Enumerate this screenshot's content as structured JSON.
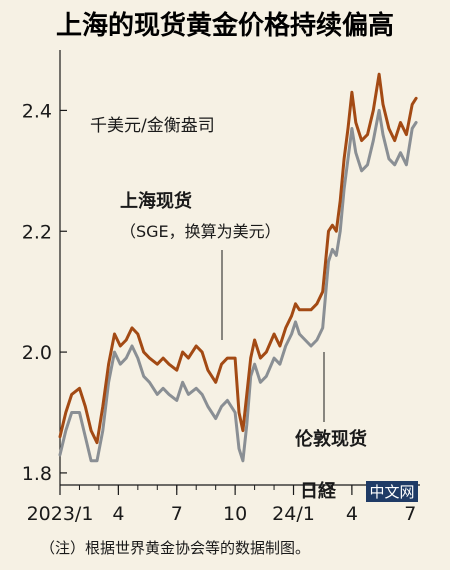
{
  "chart_data": {
    "type": "line",
    "title": "上海的现货黄金价格持续偏高",
    "unit_label": "千美元/金衡盎司",
    "ylim": [
      1.78,
      2.5
    ],
    "yticks": [
      {
        "value": 1.8,
        "label": "1.8"
      },
      {
        "value": 2.0,
        "label": "2.0"
      },
      {
        "value": 2.2,
        "label": "2.2"
      },
      {
        "value": 2.4,
        "label": "2.4"
      }
    ],
    "xlim": [
      0,
      18.5
    ],
    "xticks": [
      {
        "value": 0,
        "label": "2023/1"
      },
      {
        "value": 3,
        "label": "4"
      },
      {
        "value": 6,
        "label": "7"
      },
      {
        "value": 9,
        "label": "10"
      },
      {
        "value": 12,
        "label": "24/1"
      },
      {
        "value": 15,
        "label": "4"
      },
      {
        "value": 18,
        "label": "7"
      }
    ],
    "series": [
      {
        "name": "上海现货",
        "subtitle": "（SGE，换算为美元）",
        "color": "#a34a14",
        "points": [
          [
            0.0,
            1.86
          ],
          [
            0.3,
            1.9
          ],
          [
            0.6,
            1.93
          ],
          [
            1.0,
            1.94
          ],
          [
            1.3,
            1.91
          ],
          [
            1.6,
            1.87
          ],
          [
            1.9,
            1.85
          ],
          [
            2.2,
            1.91
          ],
          [
            2.5,
            1.98
          ],
          [
            2.8,
            2.03
          ],
          [
            3.1,
            2.01
          ],
          [
            3.4,
            2.02
          ],
          [
            3.7,
            2.04
          ],
          [
            4.0,
            2.03
          ],
          [
            4.3,
            2.0
          ],
          [
            4.6,
            1.99
          ],
          [
            5.0,
            1.98
          ],
          [
            5.3,
            1.99
          ],
          [
            5.6,
            1.98
          ],
          [
            6.0,
            1.97
          ],
          [
            6.3,
            2.0
          ],
          [
            6.6,
            1.99
          ],
          [
            7.0,
            2.01
          ],
          [
            7.3,
            2.0
          ],
          [
            7.6,
            1.97
          ],
          [
            8.0,
            1.95
          ],
          [
            8.3,
            1.98
          ],
          [
            8.6,
            1.99
          ],
          [
            9.0,
            1.99
          ],
          [
            9.2,
            1.9
          ],
          [
            9.4,
            1.87
          ],
          [
            9.6,
            1.93
          ],
          [
            9.8,
            1.99
          ],
          [
            10.0,
            2.02
          ],
          [
            10.3,
            1.99
          ],
          [
            10.6,
            2.0
          ],
          [
            11.0,
            2.03
          ],
          [
            11.3,
            2.01
          ],
          [
            11.6,
            2.04
          ],
          [
            11.9,
            2.06
          ],
          [
            12.1,
            2.08
          ],
          [
            12.3,
            2.07
          ],
          [
            12.6,
            2.07
          ],
          [
            12.9,
            2.07
          ],
          [
            13.2,
            2.08
          ],
          [
            13.5,
            2.1
          ],
          [
            13.8,
            2.2
          ],
          [
            14.0,
            2.21
          ],
          [
            14.2,
            2.2
          ],
          [
            14.4,
            2.25
          ],
          [
            14.6,
            2.32
          ],
          [
            14.8,
            2.37
          ],
          [
            15.0,
            2.43
          ],
          [
            15.2,
            2.38
          ],
          [
            15.5,
            2.35
          ],
          [
            15.8,
            2.36
          ],
          [
            16.1,
            2.4
          ],
          [
            16.4,
            2.46
          ],
          [
            16.6,
            2.41
          ],
          [
            16.9,
            2.37
          ],
          [
            17.2,
            2.35
          ],
          [
            17.5,
            2.38
          ],
          [
            17.8,
            2.36
          ],
          [
            18.1,
            2.41
          ],
          [
            18.3,
            2.42
          ]
        ]
      },
      {
        "name": "伦敦现货",
        "color": "#8a8f94",
        "points": [
          [
            0.0,
            1.83
          ],
          [
            0.3,
            1.87
          ],
          [
            0.6,
            1.9
          ],
          [
            1.0,
            1.9
          ],
          [
            1.3,
            1.86
          ],
          [
            1.6,
            1.82
          ],
          [
            1.9,
            1.82
          ],
          [
            2.2,
            1.87
          ],
          [
            2.5,
            1.95
          ],
          [
            2.8,
            2.0
          ],
          [
            3.1,
            1.98
          ],
          [
            3.4,
            1.99
          ],
          [
            3.7,
            2.01
          ],
          [
            4.0,
            1.99
          ],
          [
            4.3,
            1.96
          ],
          [
            4.6,
            1.95
          ],
          [
            5.0,
            1.93
          ],
          [
            5.3,
            1.94
          ],
          [
            5.6,
            1.93
          ],
          [
            6.0,
            1.92
          ],
          [
            6.3,
            1.95
          ],
          [
            6.6,
            1.93
          ],
          [
            7.0,
            1.94
          ],
          [
            7.3,
            1.93
          ],
          [
            7.6,
            1.91
          ],
          [
            8.0,
            1.89
          ],
          [
            8.3,
            1.91
          ],
          [
            8.6,
            1.92
          ],
          [
            9.0,
            1.9
          ],
          [
            9.2,
            1.84
          ],
          [
            9.4,
            1.82
          ],
          [
            9.6,
            1.88
          ],
          [
            9.8,
            1.96
          ],
          [
            10.0,
            1.98
          ],
          [
            10.3,
            1.95
          ],
          [
            10.6,
            1.96
          ],
          [
            11.0,
            1.99
          ],
          [
            11.3,
            1.98
          ],
          [
            11.6,
            2.01
          ],
          [
            11.9,
            2.03
          ],
          [
            12.1,
            2.05
          ],
          [
            12.3,
            2.03
          ],
          [
            12.6,
            2.02
          ],
          [
            12.9,
            2.01
          ],
          [
            13.2,
            2.02
          ],
          [
            13.5,
            2.04
          ],
          [
            13.8,
            2.15
          ],
          [
            14.0,
            2.17
          ],
          [
            14.2,
            2.16
          ],
          [
            14.4,
            2.2
          ],
          [
            14.6,
            2.27
          ],
          [
            14.8,
            2.32
          ],
          [
            15.0,
            2.37
          ],
          [
            15.2,
            2.33
          ],
          [
            15.5,
            2.3
          ],
          [
            15.8,
            2.31
          ],
          [
            16.1,
            2.35
          ],
          [
            16.4,
            2.4
          ],
          [
            16.6,
            2.36
          ],
          [
            16.9,
            2.32
          ],
          [
            17.2,
            2.31
          ],
          [
            17.5,
            2.33
          ],
          [
            17.8,
            2.31
          ],
          [
            18.1,
            2.37
          ],
          [
            18.3,
            2.38
          ]
        ]
      }
    ],
    "note": "（注）根据世界黄金协会等的数据制图。",
    "grid": false,
    "legend": "inline-annotations"
  },
  "logo": {
    "mark": "日経",
    "tag": "中文网"
  }
}
